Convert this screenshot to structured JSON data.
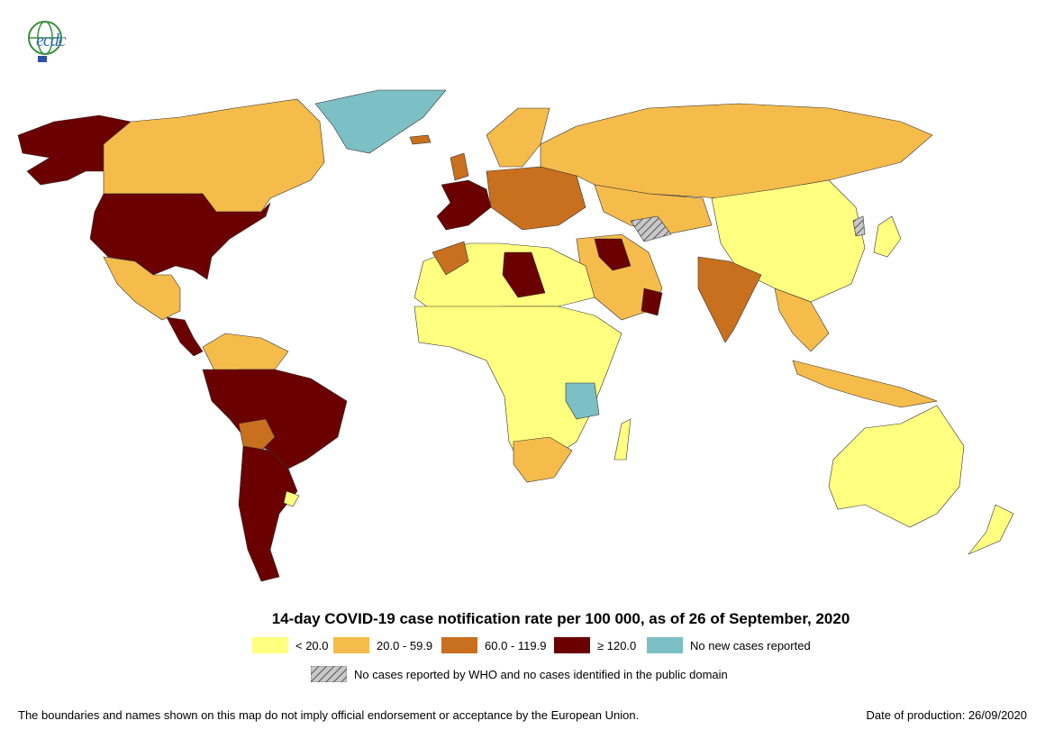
{
  "logo": {
    "text": "ecdc",
    "icon": "ecdc-globe-logo"
  },
  "map": {
    "title": "14-day COVID-19 case notification rate per 100 000, as of 26 of September, 2020",
    "legend": [
      {
        "label": "< 20.0",
        "color": "#ffff80"
      },
      {
        "label": "20.0 - 59.9",
        "color": "#f5bc4b"
      },
      {
        "label": "60.0 - 119.9",
        "color": "#c8701e"
      },
      {
        "label": "≥ 120.0",
        "color": "#6b0000"
      },
      {
        "label": "No new cases reported",
        "color": "#7cbfc4"
      }
    ],
    "no_data_label": "No cases reported by WHO and no cases identified in the public domain"
  },
  "footer": {
    "disclaimer": "The boundaries and names shown on this map do not imply official endorsement or acceptance by the European Union.",
    "date": "Date of production: 26/09/2020"
  }
}
